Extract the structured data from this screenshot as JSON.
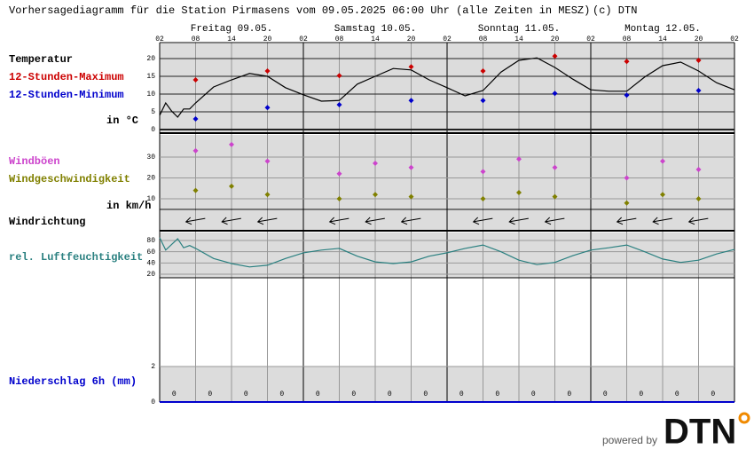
{
  "title": "Vorhersagediagramm für die Station Pirmasens vom 09.05.2025 06:00 Uhr (alle Zeiten in MESZ)",
  "copyright": "(c) DTN",
  "days": [
    "Freitag 09.05.",
    "Samstag 10.05.",
    "Sonntag 11.05.",
    "Montag 12.05."
  ],
  "hour_labels": [
    "02",
    "08",
    "14",
    "20",
    "02",
    "08",
    "14",
    "20",
    "02",
    "08",
    "14",
    "20",
    "02",
    "08",
    "14",
    "20",
    "02"
  ],
  "footer": {
    "powered_by": "powered by",
    "logo": "DTN"
  },
  "chart_data": [
    {
      "type": "line",
      "label": "Temperatur",
      "unit": "in °C",
      "color": "#000000",
      "x": [
        0,
        1,
        2,
        3,
        4,
        5,
        6,
        9,
        12,
        15,
        18,
        21,
        24,
        27,
        30,
        33,
        36,
        39,
        42,
        45,
        48,
        51,
        54,
        57,
        60,
        63,
        66,
        69,
        72,
        75,
        78,
        81,
        84,
        87,
        90,
        93,
        96
      ],
      "values": [
        4,
        7.5,
        5.2,
        3.5,
        5.8,
        5.8,
        7.5,
        12,
        14,
        15.8,
        15,
        11.8,
        9.8,
        8,
        8.2,
        12.8,
        15,
        17.2,
        16.8,
        14,
        11.8,
        9.5,
        11,
        16.2,
        19.5,
        20.2,
        17.5,
        14.2,
        11.2,
        10.8,
        10.8,
        14.8,
        18,
        19,
        16.5,
        13.2,
        11.2
      ],
      "xlim": [
        0,
        96
      ],
      "ylim": [
        -0.75,
        24.25
      ],
      "yticks": [
        0,
        5,
        10,
        15,
        20
      ],
      "grid": true,
      "markers": [
        {
          "name": "12-Stunden-Maximum",
          "color": "#cc0000",
          "x": [
            6,
            18,
            30,
            42,
            54,
            66,
            78,
            90
          ],
          "values": [
            14,
            16.5,
            15.2,
            17.7,
            16.5,
            20.7,
            19.2,
            19.5
          ]
        },
        {
          "name": "12-Stunden-Minimum",
          "color": "#0000cc",
          "x": [
            6,
            18,
            30,
            42,
            54,
            66,
            78,
            90
          ],
          "values": [
            3,
            6.2,
            7,
            8.2,
            8.2,
            10.2,
            9.7,
            11
          ]
        }
      ]
    },
    {
      "type": "scatter",
      "unit": "in km/h",
      "x": [
        6,
        12,
        18,
        30,
        36,
        42,
        54,
        60,
        66,
        78,
        84,
        90
      ],
      "xlim": [
        0,
        96
      ],
      "ylim": [
        4.9,
        40.6
      ],
      "yticks": [
        10,
        20,
        30
      ],
      "grid": true,
      "series": [
        {
          "name": "Windböen",
          "color": "#cc44cc",
          "values": [
            33,
            36,
            28,
            22,
            27,
            25,
            23,
            29,
            25,
            20,
            28,
            24
          ]
        },
        {
          "name": "Windgeschwindigkeit",
          "color": "#808000",
          "values": [
            14,
            16,
            12,
            10,
            12,
            11,
            10,
            13,
            11,
            8,
            12,
            10
          ]
        }
      ]
    },
    {
      "type": "arrows",
      "label": "Windrichtung",
      "x": [
        6,
        12,
        18,
        30,
        36,
        42,
        54,
        60,
        66,
        78,
        84,
        90
      ],
      "xlim": [
        0,
        96
      ],
      "values": [
        80,
        80,
        80,
        80,
        80,
        80,
        80,
        80,
        80,
        80,
        80,
        80
      ]
    },
    {
      "type": "line",
      "label": "rel. Luftfeuchtigkeit",
      "color": "#2a8080",
      "x": [
        0,
        1,
        3,
        4,
        5,
        6,
        9,
        12,
        15,
        18,
        21,
        24,
        27,
        30,
        33,
        36,
        39,
        42,
        45,
        48,
        51,
        54,
        57,
        60,
        63,
        66,
        69,
        72,
        75,
        78,
        81,
        84,
        87,
        90,
        93,
        96
      ],
      "values": [
        85,
        63,
        83,
        67,
        71,
        66,
        48,
        39,
        33,
        36,
        48,
        58,
        63,
        66,
        52,
        42,
        39,
        42,
        52,
        58,
        66,
        72,
        60,
        45,
        37,
        41,
        53,
        63,
        67,
        72,
        60,
        47,
        41,
        45,
        56,
        64
      ],
      "xlim": [
        0,
        96
      ],
      "ylim": [
        13.7,
        94.2
      ],
      "yticks": [
        20,
        40,
        60,
        80
      ],
      "grid": true
    },
    {
      "type": "bar",
      "label": "Niederschlag 6h (mm)",
      "color": "#0000cc",
      "x": [
        3,
        9,
        15,
        21,
        27,
        33,
        39,
        45,
        51,
        57,
        63,
        69,
        75,
        81,
        87,
        93
      ],
      "values": [
        0,
        0,
        0,
        0,
        0,
        0,
        0,
        0,
        0,
        0,
        0,
        0,
        0,
        0,
        0,
        0
      ],
      "xlim": [
        0,
        96
      ],
      "ylim": [
        0,
        7
      ],
      "yticks": [
        0,
        2
      ],
      "grid": true
    }
  ]
}
